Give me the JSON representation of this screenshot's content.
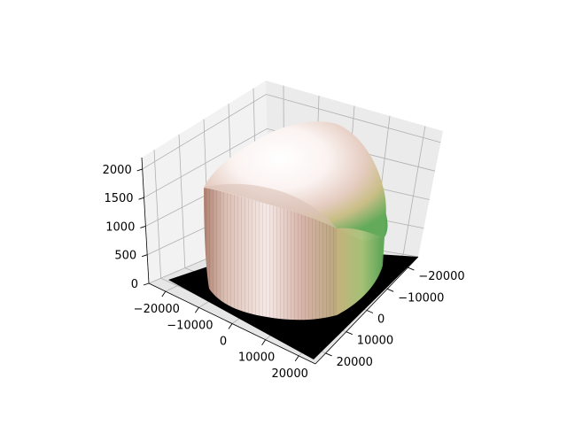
{
  "chart_data": {
    "type": "surface3d",
    "title": "",
    "xlabel": "",
    "ylabel": "",
    "zlabel": "",
    "x_ticks": [
      "−20000",
      "−10000",
      "0",
      "10000",
      "20000"
    ],
    "y_ticks": [
      "−20000",
      "−10000",
      "0",
      "10000",
      "20000"
    ],
    "z_ticks": [
      "0",
      "500",
      "1000",
      "1500",
      "2000"
    ],
    "xlim": [
      -25000,
      25000
    ],
    "ylim": [
      -25000,
      25000
    ],
    "zlim": [
      0,
      2200
    ],
    "grid": true,
    "view": "3d perspective, default matplotlib azimuth",
    "surface": {
      "description_shape": "dome-shaped elevation over a circular footprint with black base outside the footprint",
      "colormap": "pink-white-green",
      "peak_z": 2100,
      "footprint_radius": 18000
    },
    "colors": {
      "pane": "#f2f2f2",
      "pane_dark": "#e6e6e6",
      "grid": "#b0b0b0",
      "base": "#000000",
      "surface_low": "#c8a08a",
      "surface_high": "#ffffff",
      "surface_green": "#4f9e4f"
    }
  }
}
